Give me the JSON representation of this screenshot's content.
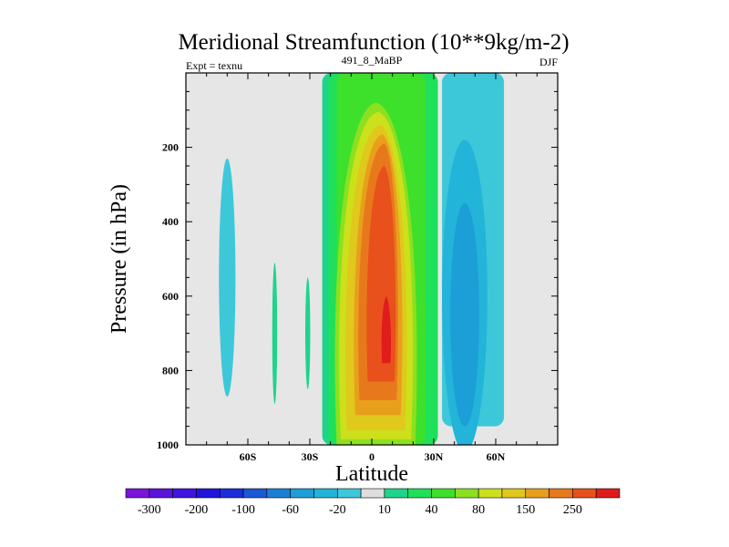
{
  "chart_data": {
    "type": "contour",
    "title": "Meridional Streamfunction (10**9kg/m-2)",
    "left_string": "Expt = texnu",
    "center_string": "491_8_MaBP",
    "right_string": "DJF",
    "xlabel": "Latitude",
    "ylabel": "Pressure (in hPa)",
    "xlim": [
      -90,
      90
    ],
    "ylim": [
      1000,
      0
    ],
    "x_ticks": [
      {
        "value": -60,
        "label": "60S"
      },
      {
        "value": -30,
        "label": "30S"
      },
      {
        "value": 0,
        "label": "0"
      },
      {
        "value": 30,
        "label": "30N"
      },
      {
        "value": 60,
        "label": "60N"
      }
    ],
    "y_ticks": [
      {
        "value": 200,
        "label": "200"
      },
      {
        "value": 400,
        "label": "400"
      },
      {
        "value": 600,
        "label": "600"
      },
      {
        "value": 800,
        "label": "800"
      },
      {
        "value": 1000,
        "label": "1000"
      }
    ],
    "field_shape": {
      "positive_cell": {
        "center_lat": 7,
        "center_pressure": 720,
        "max_value": 250,
        "lat_extent": [
          -24,
          32
        ]
      },
      "negative_cells": [
        {
          "center_lat": 45,
          "center_pressure": 600,
          "min_value": -40,
          "lat_extent": [
            30,
            64
          ]
        },
        {
          "center_lat": -70,
          "center_pressure": 550,
          "min_value": -20,
          "lat_extent": [
            -74,
            -66
          ]
        },
        {
          "center_lat": -47,
          "center_pressure": 700,
          "value": 10,
          "lat_extent": [
            -48,
            -46
          ]
        },
        {
          "center_lat": -31,
          "center_pressure": 700,
          "value": 10,
          "lat_extent": [
            -32,
            -30
          ]
        }
      ]
    },
    "colorbar": {
      "levels": [
        -300,
        -250,
        -200,
        -150,
        -100,
        -80,
        -60,
        -40,
        -20,
        -10,
        10,
        20,
        40,
        60,
        80,
        100,
        150,
        200,
        250
      ],
      "colors": [
        "#7a14d9",
        "#5a14d9",
        "#3d14e0",
        "#2014d9",
        "#1c2ed9",
        "#1c59d4",
        "#1c7fd6",
        "#1c9ed6",
        "#22b4d9",
        "#3dc8d9",
        "#dedede",
        "#1ed48c",
        "#1ee05a",
        "#3de02a",
        "#8ce020",
        "#cce01c",
        "#e0c81c",
        "#e8a01c",
        "#e8781c",
        "#e8501c",
        "#e01c1c"
      ],
      "tick_labels": [
        "-300",
        "-200",
        "-100",
        "-60",
        "-20",
        "10",
        "40",
        "80",
        "150",
        "250"
      ]
    }
  }
}
